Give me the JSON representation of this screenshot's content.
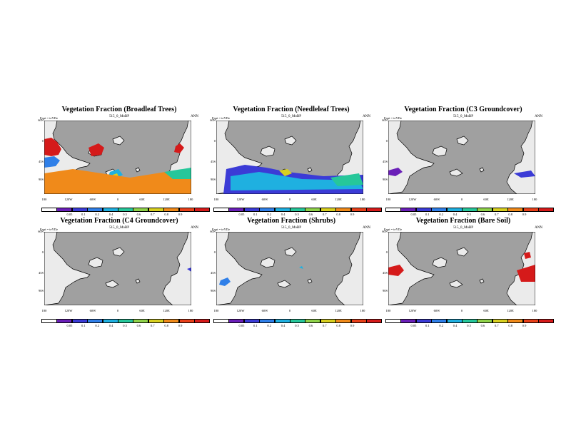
{
  "colors": {
    "ocean": "#a0a0a0",
    "land": "#ebebeb",
    "scale": [
      "#ffffff",
      "#6a1fb8",
      "#3b3bd6",
      "#2f7fe8",
      "#1fb0e0",
      "#26c79a",
      "#8fd24a",
      "#d8d020",
      "#f08a1a",
      "#e8401a",
      "#d51a1a"
    ]
  },
  "colorbar": {
    "ticks": [
      "0.05",
      "0.1",
      "0.2",
      "0.4",
      "0.5",
      "0.6",
      "0.7",
      "0.8",
      "0.9"
    ]
  },
  "axes": {
    "lat_labels": [
      "60N",
      "0",
      "45S",
      "90S"
    ],
    "lon_labels": [
      "180",
      "120W",
      "60W",
      "0",
      "60E",
      "120E",
      "180"
    ]
  },
  "panels": [
    {
      "title": "Vegetation Fraction (Broadleaf Trees)",
      "expt": "Expt = teYDz",
      "run": "515_0_MoBP",
      "period": "ANN",
      "pattern": "broadleaf"
    },
    {
      "title": "Vegetation Fraction (Needleleaf Trees)",
      "expt": "Expt = teYDz",
      "run": "515_0_MoBP",
      "period": "ANN",
      "pattern": "needleleaf"
    },
    {
      "title": "Vegetation Fraction (C3 Groundcover)",
      "expt": "Expt = teYDz",
      "run": "515_0_MoBP",
      "period": "ANN",
      "pattern": "c3"
    },
    {
      "title": "Vegetation Fraction (C4 Groundcover)",
      "expt": "Expt = teYDz",
      "run": "515_0_MoBP",
      "period": "ANN",
      "pattern": "c4"
    },
    {
      "title": "Vegetation Fraction (Shrubs)",
      "expt": "Expt = teYDz",
      "run": "515_0_MoBP",
      "period": "ANN",
      "pattern": "shrubs"
    },
    {
      "title": "Vegetation Fraction (Bare Soil)",
      "expt": "Expt = teYDz",
      "run": "515_0_MoBP",
      "period": "ANN",
      "pattern": "bare"
    }
  ]
}
